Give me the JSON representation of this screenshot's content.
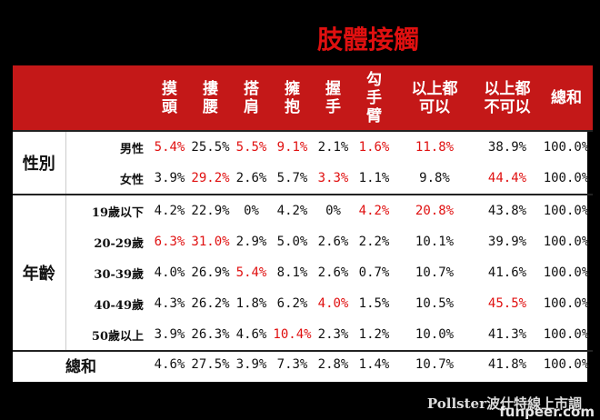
{
  "title": "肢體接觸",
  "columns": [
    [
      "摸",
      "頭"
    ],
    [
      "摟",
      "腰"
    ],
    [
      "搭",
      "肩"
    ],
    [
      "擁",
      "抱"
    ],
    [
      "握",
      "手"
    ],
    [
      "勾",
      "手",
      "臂"
    ],
    [
      "以上都",
      "可以"
    ],
    [
      "以上都",
      "不可以"
    ],
    [
      "總和"
    ]
  ],
  "groups": [
    {
      "label": "性別",
      "rows": [
        {
          "label": "男性",
          "values": [
            "5.4%",
            "25.5%",
            "5.5%",
            "9.1%",
            "2.1%",
            "1.6%",
            "11.8%",
            "38.9%",
            "100.0%"
          ],
          "red": [
            0,
            2,
            3,
            5,
            6
          ]
        },
        {
          "label": "女性",
          "values": [
            "3.9%",
            "29.2%",
            "2.6%",
            "5.7%",
            "3.3%",
            "1.1%",
            "9.8%",
            "44.4%",
            "100.0%"
          ],
          "red": [
            1,
            4,
            7
          ]
        }
      ]
    },
    {
      "label": "年齡",
      "rows": [
        {
          "label": "19歲以下",
          "values": [
            "4.2%",
            "22.9%",
            "0%",
            "4.2%",
            "0%",
            "4.2%",
            "20.8%",
            "43.8%",
            "100.0%"
          ],
          "red": [
            5,
            6
          ]
        },
        {
          "label": "20-29歲",
          "values": [
            "6.3%",
            "31.0%",
            "2.9%",
            "5.0%",
            "2.6%",
            "2.2%",
            "10.1%",
            "39.9%",
            "100.0%"
          ],
          "red": [
            0,
            1
          ]
        },
        {
          "label": "30-39歲",
          "values": [
            "4.0%",
            "26.9%",
            "5.4%",
            "8.1%",
            "2.6%",
            "0.7%",
            "10.7%",
            "41.6%",
            "100.0%"
          ],
          "red": [
            2
          ]
        },
        {
          "label": "40-49歲",
          "values": [
            "4.3%",
            "26.2%",
            "1.8%",
            "6.2%",
            "4.0%",
            "1.5%",
            "10.5%",
            "45.5%",
            "100.0%"
          ],
          "red": [
            4,
            7
          ]
        },
        {
          "label": "50歲以上",
          "values": [
            "3.9%",
            "26.3%",
            "4.6%",
            "10.4%",
            "2.3%",
            "1.2%",
            "10.0%",
            "41.3%",
            "100.0%"
          ],
          "red": [
            3
          ]
        }
      ]
    }
  ],
  "total": {
    "label": "總和",
    "values": [
      "4.6%",
      "27.5%",
      "3.9%",
      "7.3%",
      "2.8%",
      "1.4%",
      "10.7%",
      "41.8%",
      "100.0%"
    ]
  },
  "footer": "Pollster波仕特線上市調",
  "watermark": "funpeer.com",
  "colors": {
    "accent": "#c41818",
    "highlight": "#e01010"
  }
}
